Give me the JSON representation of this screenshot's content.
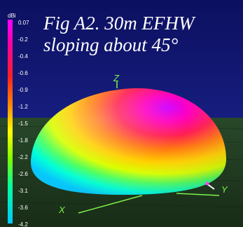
{
  "caption": {
    "line1": "Fig A2. 30m EFHW",
    "line2": "sloping about 45°"
  },
  "legend": {
    "unit": "dBi",
    "ticks": [
      "0.07",
      "-0.2",
      "-0.4",
      "-0.6",
      "-0.9",
      "-1.2",
      "-1.5",
      "-1.8",
      "-2.2",
      "-2.6",
      "-3.1",
      "-3.6",
      "-4.2"
    ],
    "colors": [
      "#ff00ff",
      "#ff00c0",
      "#ff0070",
      "#ff2020",
      "#ff6a00",
      "#ffb400",
      "#ffff00",
      "#b0ff00",
      "#40ff40",
      "#00ffa0",
      "#00ffff",
      "#00c8ff"
    ]
  },
  "axes": {
    "z": "Z",
    "y": "Y",
    "x": "X"
  },
  "colors": {
    "sky": "#10166e",
    "ground": "#1e3a1c",
    "axis": "#7df24a"
  }
}
